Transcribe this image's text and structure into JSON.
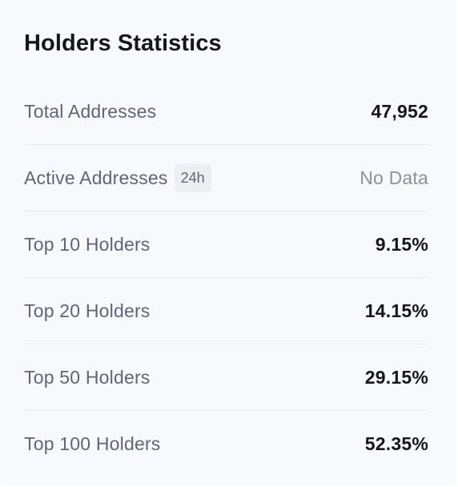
{
  "title": "Holders Statistics",
  "rows": [
    {
      "label": "Total Addresses",
      "value": "47,952"
    },
    {
      "label": "Active Addresses",
      "badge": "24h",
      "value": "No Data"
    },
    {
      "label": "Top 10 Holders",
      "value": "9.15%"
    },
    {
      "label": "Top 20 Holders",
      "value": "14.15%"
    },
    {
      "label": "Top 50 Holders",
      "value": "29.15%"
    },
    {
      "label": "Top 100 Holders",
      "value": "52.35%"
    }
  ],
  "colors": {
    "card_background": "#f8f9fd",
    "label_text": "#5e6676",
    "value_text": "#15171c",
    "muted_value_text": "#8a909c",
    "divider": "#e7e9ee",
    "badge_background": "#eceef2"
  }
}
